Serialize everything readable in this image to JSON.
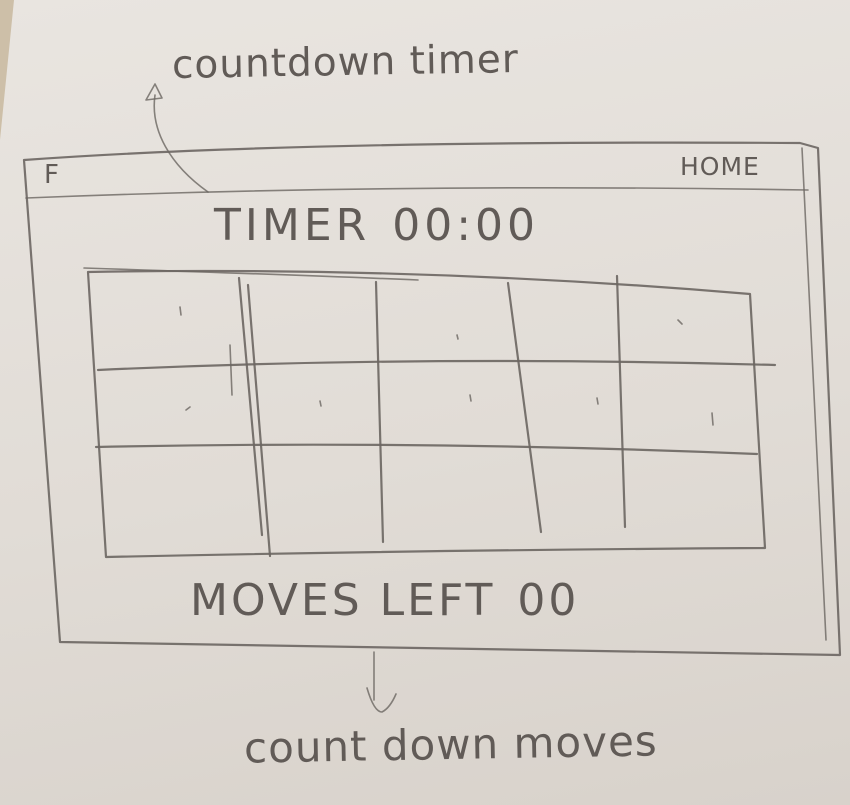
{
  "annotations": {
    "timer_note": "countdown timer",
    "moves_note": "count down moves"
  },
  "header": {
    "brand": "F",
    "home_link": "HOME"
  },
  "timer": {
    "label": "TIMER",
    "value": "00:00"
  },
  "grid": {
    "rows": 3,
    "columns": 5
  },
  "moves": {
    "label": "MOVES LEFT",
    "value": "00"
  }
}
